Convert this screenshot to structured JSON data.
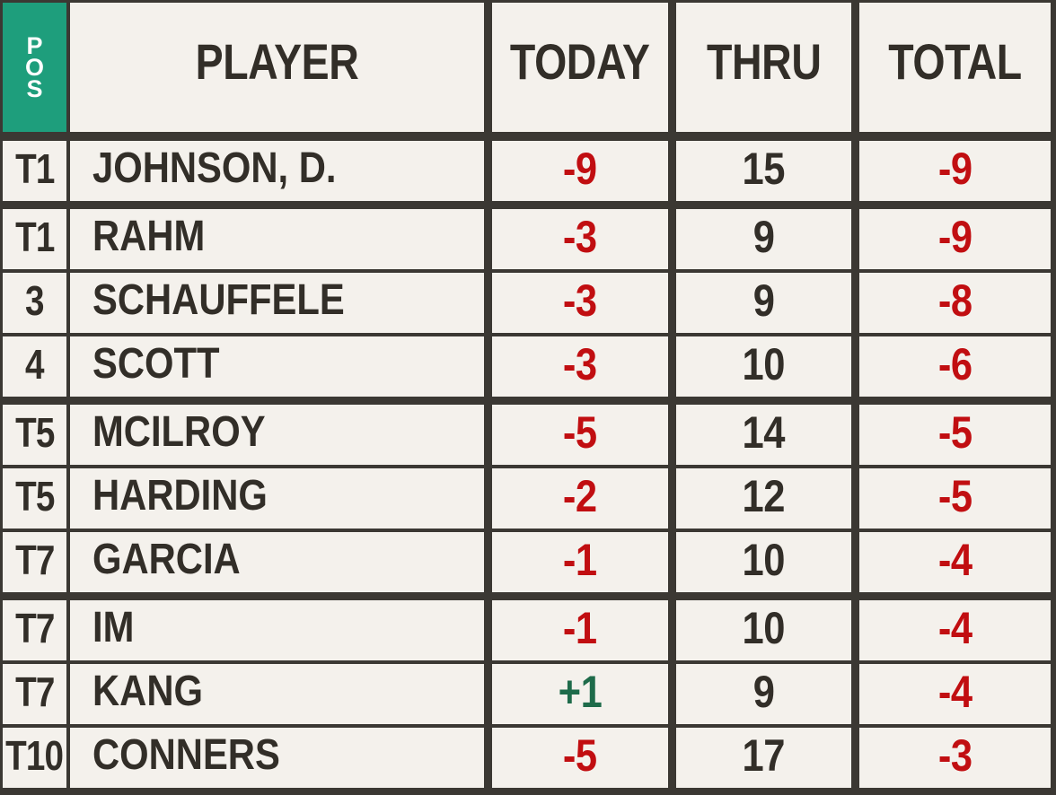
{
  "colors": {
    "background": "#f4f1ec",
    "grid": "#3b3833",
    "text": "#322e28",
    "negative_red": "#c10e11",
    "positive_green": "#1e6b4a",
    "pos_header_green": "#1e9e7c",
    "header_text_white": "#ffffff"
  },
  "header": {
    "pos_letters": [
      "P",
      "O",
      "S"
    ],
    "player": "PLAYER",
    "today": "TODAY",
    "thru": "THRU",
    "total": "TOTAL"
  },
  "chart_data": {
    "type": "table",
    "title": "Golf leaderboard",
    "columns": [
      "POS",
      "PLAYER",
      "TODAY",
      "THRU",
      "TOTAL"
    ],
    "rows": [
      {
        "pos": "T1",
        "player": "JOHNSON, D.",
        "today": "-9",
        "thru": "15",
        "total": "-9"
      },
      {
        "pos": "T1",
        "player": "RAHM",
        "today": "-3",
        "thru": "9",
        "total": "-9"
      },
      {
        "pos": "3",
        "player": "SCHAUFFELE",
        "today": "-3",
        "thru": "9",
        "total": "-8"
      },
      {
        "pos": "4",
        "player": "SCOTT",
        "today": "-3",
        "thru": "10",
        "total": "-6"
      },
      {
        "pos": "T5",
        "player": "MCILROY",
        "today": "-5",
        "thru": "14",
        "total": "-5"
      },
      {
        "pos": "T5",
        "player": "HARDING",
        "today": "-2",
        "thru": "12",
        "total": "-5"
      },
      {
        "pos": "T7",
        "player": "GARCIA",
        "today": "-1",
        "thru": "10",
        "total": "-4"
      },
      {
        "pos": "T7",
        "player": "IM",
        "today": "-1",
        "thru": "10",
        "total": "-4"
      },
      {
        "pos": "T7",
        "player": "KANG",
        "today": "+1",
        "thru": "9",
        "total": "-4"
      },
      {
        "pos": "T10",
        "player": "CONNERS",
        "today": "-5",
        "thru": "17",
        "total": "-3"
      }
    ],
    "layout_hints": {
      "group_separators_after_rows": [
        0,
        3,
        6
      ],
      "today_total_color": "red for under par, green for over par",
      "thru_color": "dark"
    }
  }
}
